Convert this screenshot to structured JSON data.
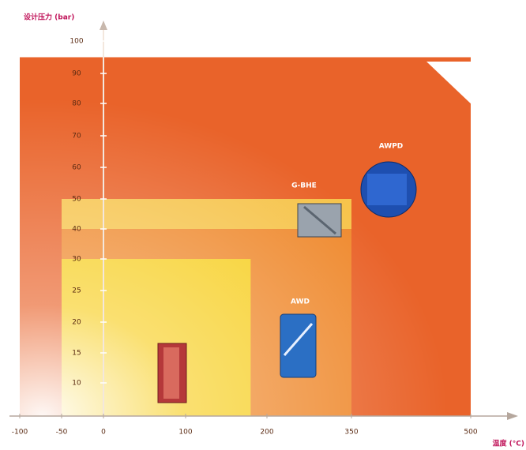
{
  "chart_data": {
    "type": "region",
    "y_label": "设计压力 (bar)",
    "x_label": "温度 (°C)",
    "xlim": [
      -100,
      500
    ],
    "ylim": [
      0,
      100
    ],
    "xticks": [
      -100,
      -50,
      0,
      100,
      200,
      350,
      500
    ],
    "yticks": [
      100,
      90,
      80,
      70,
      60,
      50,
      40,
      30,
      25,
      20,
      15,
      10
    ],
    "regions": [
      {
        "name": "AWPD",
        "x": [
          -100,
          500
        ],
        "y": [
          0,
          95
        ],
        "color": "#e9632a"
      },
      {
        "name": "G-BHE",
        "x": [
          -50,
          350
        ],
        "y": [
          0,
          50
        ],
        "color": "#f6c44c"
      },
      {
        "name": "AWD",
        "x": [
          -50,
          350
        ],
        "y": [
          0,
          40
        ],
        "color": "#ef8a2f"
      },
      {
        "name": null,
        "x": [
          -50,
          180
        ],
        "y": [
          0,
          30
        ],
        "color": "#f7cf24"
      }
    ]
  }
}
